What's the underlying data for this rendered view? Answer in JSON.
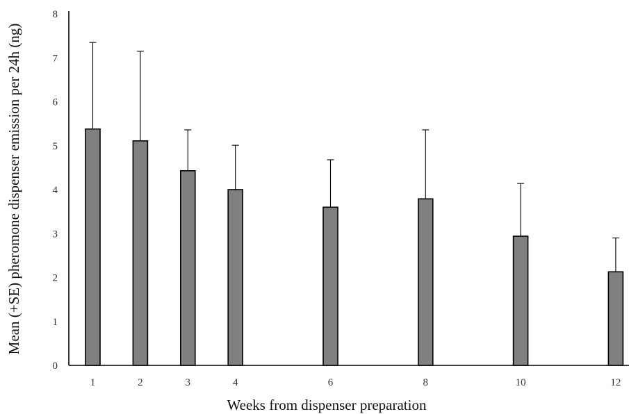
{
  "chart_data": {
    "type": "bar",
    "title": "",
    "xlabel": "Weeks from dispenser preparation",
    "ylabel": "Mean (+SE) pheromone dispenser emission per 24h (ng)",
    "x": [
      1,
      2,
      3,
      4,
      6,
      8,
      10,
      12
    ],
    "xlim": [
      0.5,
      12.5
    ],
    "ylim": [
      0,
      8
    ],
    "yticks": [
      0,
      1,
      2,
      3,
      4,
      5,
      6,
      7,
      8
    ],
    "series": [
      {
        "values": [
          5.38,
          5.11,
          4.43,
          4.0,
          3.6,
          3.79,
          2.94,
          2.13
        ],
        "error_upper": [
          7.35,
          7.15,
          5.36,
          5.01,
          4.68,
          5.36,
          4.14,
          2.9
        ]
      }
    ],
    "bar_color": "#808080",
    "edge_color": "#000000",
    "grid": false,
    "legend": "none"
  }
}
